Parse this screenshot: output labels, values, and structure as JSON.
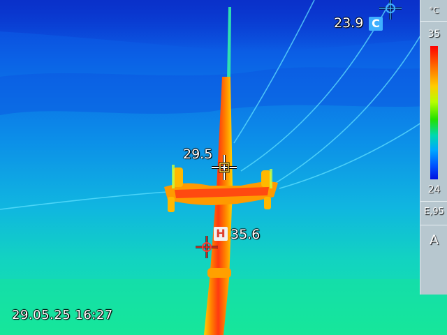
{
  "readouts": {
    "spot_center": "29.5",
    "spot_hot": "35.6",
    "hot_tag": "H",
    "spot_cold": "23.9",
    "cold_tag": "C"
  },
  "timestamp": "29.05.25 16:27",
  "scale": {
    "unit": "°C",
    "max": "35",
    "min": "24",
    "emissivity": "E,95",
    "mode": "A"
  },
  "colors": {
    "sky_top": "#0a3fd8",
    "sky_mid": "#0a8fe8",
    "horizon": "#10e0a8",
    "pole_core": "#ff3a10",
    "pole_edge": "#ffd000",
    "hot_marker": "#ff3a2f",
    "cold_marker": "#3fb0ff"
  }
}
